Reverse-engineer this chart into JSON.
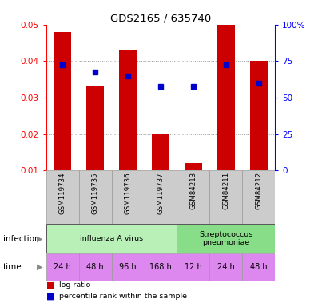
{
  "title": "GDS2165 / 635740",
  "samples": [
    "GSM119734",
    "GSM119735",
    "GSM119736",
    "GSM119737",
    "GSM84213",
    "GSM84211",
    "GSM84212"
  ],
  "log_ratio": [
    0.048,
    0.033,
    0.043,
    0.02,
    0.012,
    0.05,
    0.04
  ],
  "percentile_rank": [
    0.039,
    0.037,
    0.036,
    0.033,
    0.033,
    0.039,
    0.034
  ],
  "ylim": [
    0.01,
    0.05
  ],
  "yticks_left": [
    0.01,
    0.02,
    0.03,
    0.04,
    0.05
  ],
  "yticks_right_pct": [
    0,
    25,
    50,
    75,
    100
  ],
  "infection_groups": [
    {
      "label": "influenza A virus",
      "start": 0,
      "end": 4,
      "color": "#b8f0b8"
    },
    {
      "label": "Streptococcus\npneumoniae",
      "start": 4,
      "end": 7,
      "color": "#88dd88"
    }
  ],
  "time_labels": [
    "24 h",
    "48 h",
    "96 h",
    "168 h",
    "12 h",
    "24 h",
    "48 h"
  ],
  "time_color": "#dd88ee",
  "bar_color": "#cc0000",
  "dot_color": "#0000cc",
  "gsm_bg": "#cccccc",
  "gsm_border": "#999999",
  "legend_items": [
    {
      "label": "log ratio",
      "color": "#cc0000"
    },
    {
      "label": "percentile rank within the sample",
      "color": "#0000cc"
    }
  ]
}
